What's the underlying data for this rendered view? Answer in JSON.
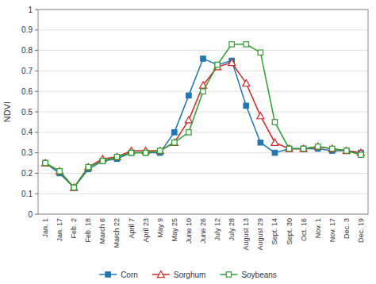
{
  "chart_data": {
    "type": "line",
    "categories": [
      "Jan. 1",
      "Jan. 17",
      "Feb. 2",
      "Feb. 18",
      "March 6",
      "March 22",
      "April 7",
      "April 23",
      "May 9",
      "May 25",
      "June 10",
      "June 26",
      "July 12",
      "July 28",
      "August 13",
      "August 29",
      "Sept. 14",
      "Sept. 30",
      "Oct. 16",
      "Nov. 1",
      "Nov. 17",
      "Dec. 3",
      "Dec. 19"
    ],
    "series": [
      {
        "name": "Corn",
        "marker": "square",
        "values": [
          0.25,
          0.2,
          0.13,
          0.22,
          0.26,
          0.27,
          0.3,
          0.3,
          0.3,
          0.4,
          0.58,
          0.76,
          0.73,
          0.75,
          0.53,
          0.35,
          0.3,
          0.32,
          0.32,
          0.32,
          0.31,
          0.31,
          0.3
        ]
      },
      {
        "name": "Sorghum",
        "marker": "triangle-open",
        "values": [
          0.25,
          0.21,
          0.13,
          0.23,
          0.27,
          0.28,
          0.31,
          0.31,
          0.31,
          0.35,
          0.46,
          0.63,
          0.72,
          0.74,
          0.64,
          0.48,
          0.35,
          0.32,
          0.32,
          0.33,
          0.32,
          0.31,
          0.3
        ]
      },
      {
        "name": "Soybeans",
        "marker": "square-open",
        "values": [
          0.25,
          0.21,
          0.13,
          0.23,
          0.26,
          0.28,
          0.3,
          0.3,
          0.31,
          0.35,
          0.4,
          0.6,
          0.73,
          0.83,
          0.83,
          0.79,
          0.45,
          0.32,
          0.32,
          0.33,
          0.32,
          0.31,
          0.29
        ]
      }
    ],
    "ylabel": "NDVI",
    "ylim": [
      0,
      1.0
    ],
    "yticks": [
      0,
      0.1,
      0.2,
      0.3,
      0.4,
      0.5,
      0.6,
      0.7,
      0.8,
      0.9,
      1
    ],
    "grid": true,
    "legend": "bottom"
  }
}
